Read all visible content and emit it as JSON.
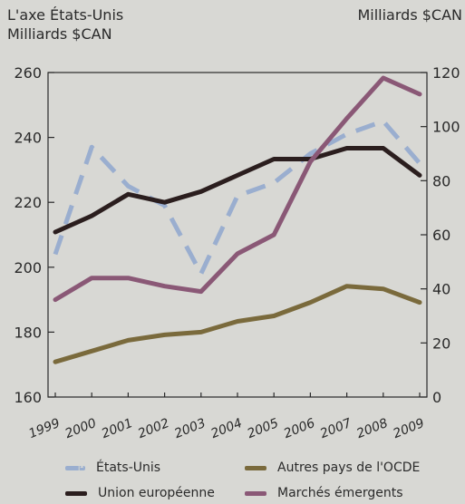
{
  "chart_data": {
    "type": "line",
    "categories": [
      "1999",
      "2000",
      "2001",
      "2002",
      "2003",
      "2004",
      "2005",
      "2006",
      "2007",
      "2008",
      "2009"
    ],
    "left_axis": {
      "title": "L'axe États-Unis\nMilliards $CAN",
      "ylim": [
        160,
        260
      ],
      "ticks": [
        160,
        180,
        200,
        220,
        240,
        260
      ]
    },
    "right_axis": {
      "title": "Milliards $CAN",
      "ylim": [
        0,
        120
      ],
      "ticks": [
        0,
        20,
        40,
        60,
        80,
        100,
        120
      ]
    },
    "series": [
      {
        "name": "États-Unis",
        "axis": "left",
        "style": "dashed",
        "color": "#9aaecf",
        "values": [
          204,
          237,
          225,
          219,
          198,
          222,
          226,
          235,
          241,
          245,
          232
        ]
      },
      {
        "name": "Union européenne",
        "axis": "right",
        "style": "solid",
        "color": "#2b1e1e",
        "values": [
          61,
          67,
          75,
          72,
          76,
          82,
          88,
          88,
          92,
          92,
          82
        ]
      },
      {
        "name": "Autres pays de l'OCDE",
        "axis": "right",
        "style": "solid",
        "color": "#7a6a3c",
        "values": [
          13,
          17,
          21,
          23,
          24,
          28,
          30,
          35,
          41,
          40,
          35
        ]
      },
      {
        "name": "Marchés émergents",
        "axis": "right",
        "style": "solid",
        "color": "#8a5876",
        "values": [
          36,
          44,
          44,
          41,
          39,
          53,
          60,
          87,
          103,
          118,
          112
        ]
      }
    ],
    "grid": false,
    "legend_position": "bottom"
  }
}
